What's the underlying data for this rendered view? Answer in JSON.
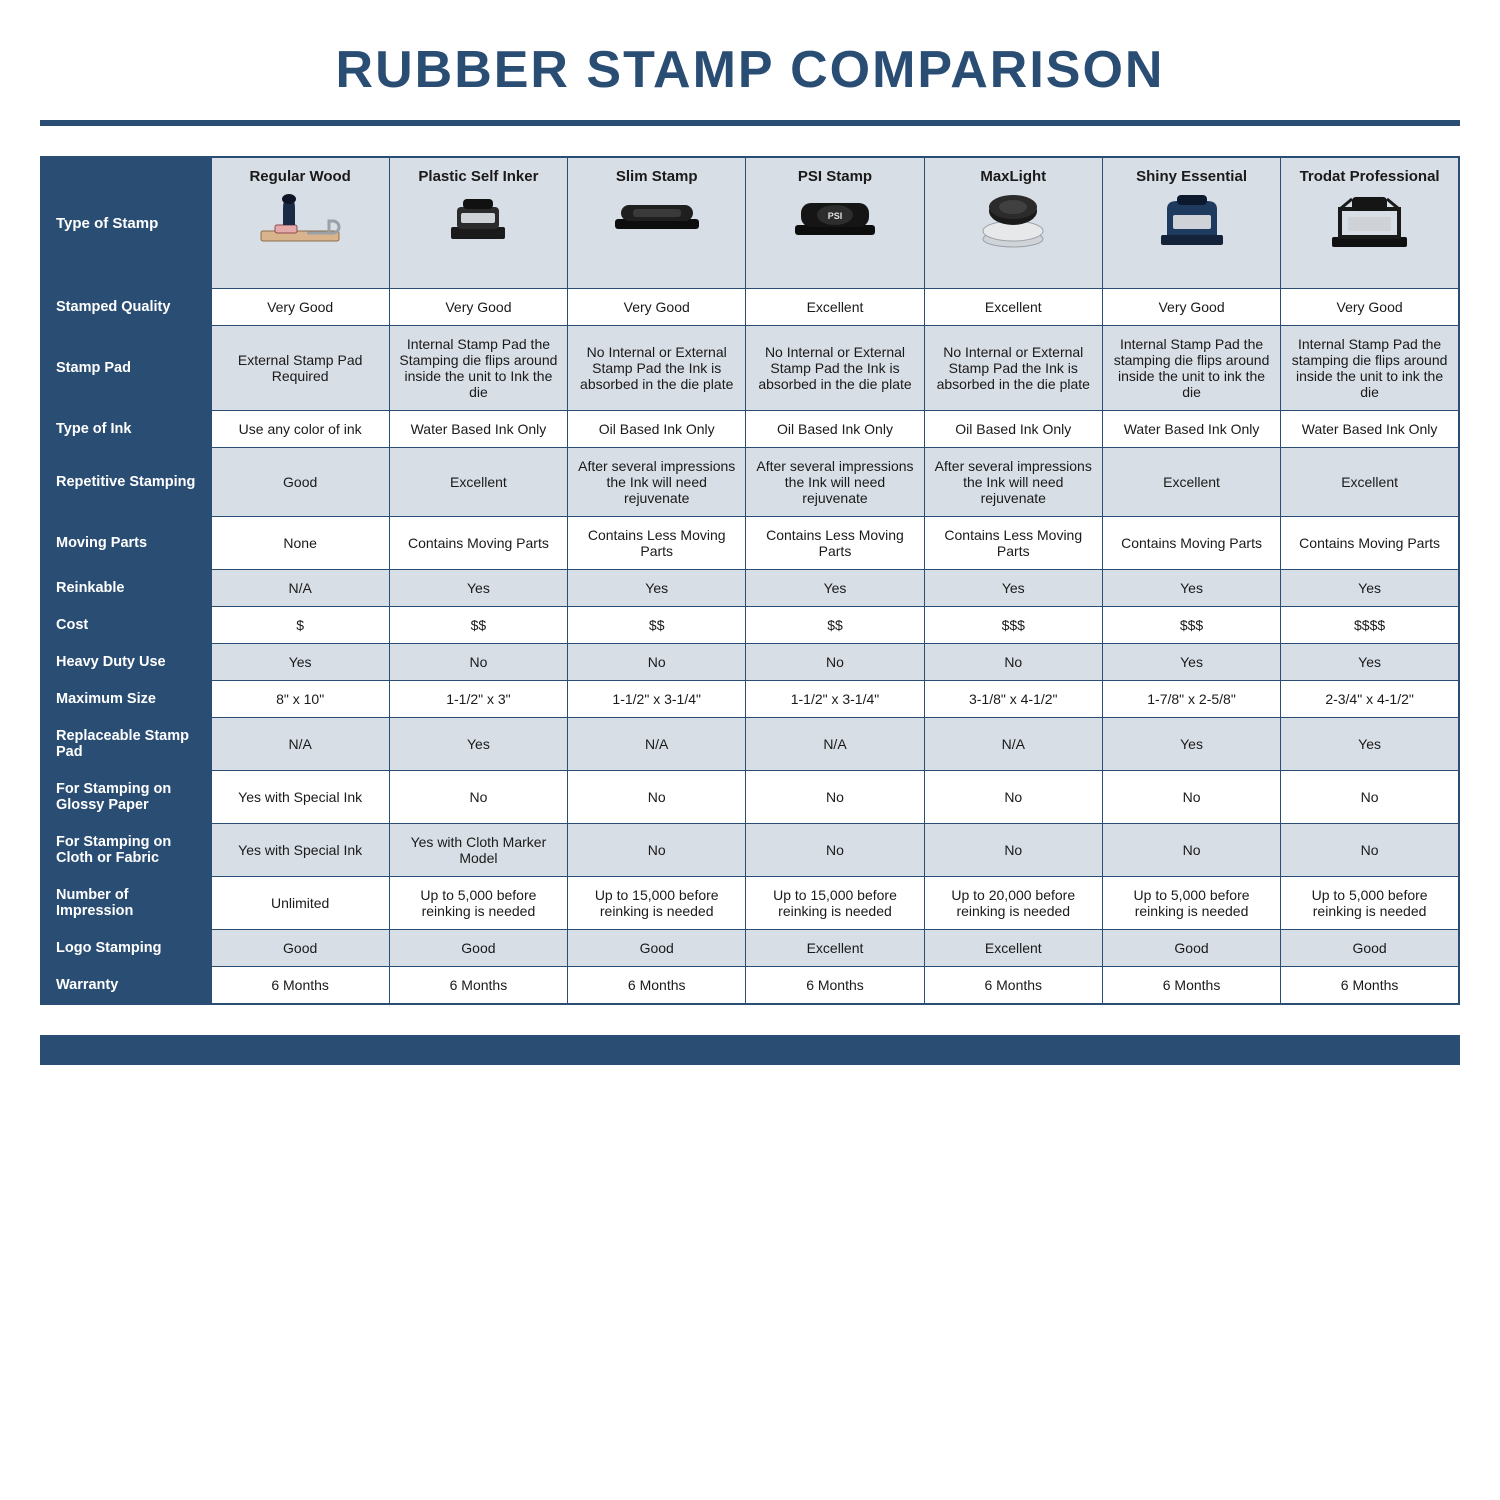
{
  "title": "RUBBER STAMP COMPARISON",
  "colors": {
    "brand": "#2a4d74",
    "header_bg": "#d8dee6",
    "alt_row_bg": "#d8dee6",
    "row_bg": "#ffffff",
    "border": "#2a4d74",
    "title_text": "#2a4d74"
  },
  "table": {
    "corner_label": "Type of Stamp",
    "columns": [
      {
        "label": "Regular Wood",
        "icon": "wood-stamp-icon"
      },
      {
        "label": "Plastic Self Inker",
        "icon": "self-inker-icon"
      },
      {
        "label": "Slim Stamp",
        "icon": "slim-stamp-icon"
      },
      {
        "label": "PSI Stamp",
        "icon": "psi-stamp-icon"
      },
      {
        "label": "MaxLight",
        "icon": "maxlight-icon"
      },
      {
        "label": "Shiny Essential",
        "icon": "shiny-essential-icon"
      },
      {
        "label": "Trodat Professional",
        "icon": "trodat-pro-icon"
      }
    ],
    "rows": [
      {
        "label": "Stamped Quality",
        "cells": [
          "Very Good",
          "Very Good",
          "Very Good",
          "Excellent",
          "Excellent",
          "Very Good",
          "Very Good"
        ]
      },
      {
        "label": "Stamp Pad",
        "cells": [
          "External Stamp Pad Required",
          "Internal Stamp Pad the Stamping die flips around inside the unit to Ink the die",
          "No Internal or External Stamp Pad the Ink is absorbed in the die plate",
          "No Internal or External Stamp Pad the Ink is absorbed in the die plate",
          "No Internal or External Stamp Pad the Ink is absorbed in the die plate",
          "Internal Stamp Pad the stamping die flips around inside the unit to ink the die",
          "Internal Stamp Pad the stamping die flips around inside the unit to ink the die"
        ]
      },
      {
        "label": "Type of Ink",
        "cells": [
          "Use any color of ink",
          "Water Based Ink Only",
          "Oil Based Ink Only",
          "Oil Based Ink Only",
          "Oil Based Ink Only",
          "Water Based Ink Only",
          "Water Based Ink Only"
        ]
      },
      {
        "label": "Repetitive Stamping",
        "cells": [
          "Good",
          "Excellent",
          "After several impressions the Ink will need rejuvenate",
          "After several impressions the Ink will need rejuvenate",
          "After several impressions the Ink will need rejuvenate",
          "Excellent",
          "Excellent"
        ]
      },
      {
        "label": "Moving Parts",
        "cells": [
          "None",
          "Contains Moving Parts",
          "Contains Less Moving Parts",
          "Contains Less Moving Parts",
          "Contains Less Moving Parts",
          "Contains Moving Parts",
          "Contains Moving Parts"
        ]
      },
      {
        "label": "Reinkable",
        "cells": [
          "N/A",
          "Yes",
          "Yes",
          "Yes",
          "Yes",
          "Yes",
          "Yes"
        ]
      },
      {
        "label": "Cost",
        "cells": [
          "$",
          "$$",
          "$$",
          "$$",
          "$$$",
          "$$$",
          "$$$$"
        ]
      },
      {
        "label": "Heavy Duty Use",
        "cells": [
          "Yes",
          "No",
          "No",
          "No",
          "No",
          "Yes",
          "Yes"
        ]
      },
      {
        "label": "Maximum Size",
        "cells": [
          "8\" x 10\"",
          "1-1/2\" x 3\"",
          "1-1/2\" x 3-1/4\"",
          "1-1/2\" x 3-1/4\"",
          "3-1/8\" x 4-1/2\"",
          "1-7/8\" x 2-5/8\"",
          "2-3/4\" x 4-1/2\""
        ]
      },
      {
        "label": "Replaceable Stamp Pad",
        "cells": [
          "N/A",
          "Yes",
          "N/A",
          "N/A",
          "N/A",
          "Yes",
          "Yes"
        ]
      },
      {
        "label": "For Stamping on Glossy Paper",
        "cells": [
          "Yes with Special Ink",
          "No",
          "No",
          "No",
          "No",
          "No",
          "No"
        ]
      },
      {
        "label": "For Stamping on Cloth or Fabric",
        "cells": [
          "Yes with Special Ink",
          "Yes with Cloth Marker Model",
          "No",
          "No",
          "No",
          "No",
          "No"
        ]
      },
      {
        "label": "Number of Impression",
        "cells": [
          "Unlimited",
          "Up to 5,000 before reinking is needed",
          "Up to 15,000 before reinking is needed",
          "Up to 15,000 before reinking is needed",
          "Up to 20,000 before reinking is needed",
          "Up to 5,000 before reinking is needed",
          "Up to 5,000 before reinking is needed"
        ]
      },
      {
        "label": "Logo Stamping",
        "cells": [
          "Good",
          "Good",
          "Good",
          "Excellent",
          "Excellent",
          "Good",
          "Good"
        ]
      },
      {
        "label": "Warranty",
        "cells": [
          "6 Months",
          "6 Months",
          "6 Months",
          "6 Months",
          "6 Months",
          "6 Months",
          "6 Months"
        ]
      }
    ]
  }
}
